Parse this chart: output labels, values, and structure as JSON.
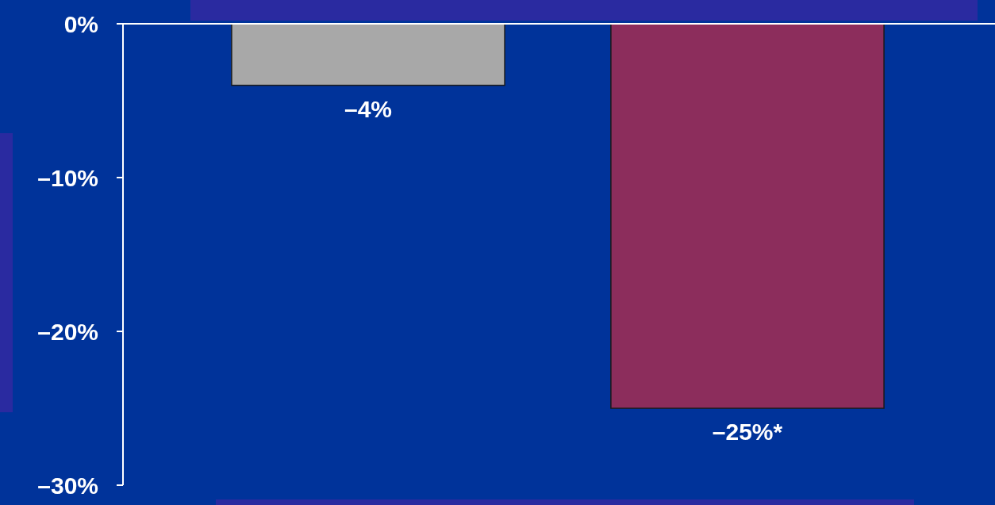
{
  "chart_data": {
    "type": "bar",
    "categories": [
      null,
      null
    ],
    "values": [
      -4,
      -25
    ],
    "colors": [
      "#a8a8a8",
      "#8c2d5c"
    ],
    "value_labels": [
      "–4%",
      "–25%*"
    ],
    "ylim": [
      -30,
      0
    ],
    "yticks": [
      {
        "value": 0,
        "label": "0%"
      },
      {
        "value": -10,
        "label": "–10%"
      },
      {
        "value": -20,
        "label": "–20%"
      },
      {
        "value": -30,
        "label": "–30%"
      }
    ]
  }
}
